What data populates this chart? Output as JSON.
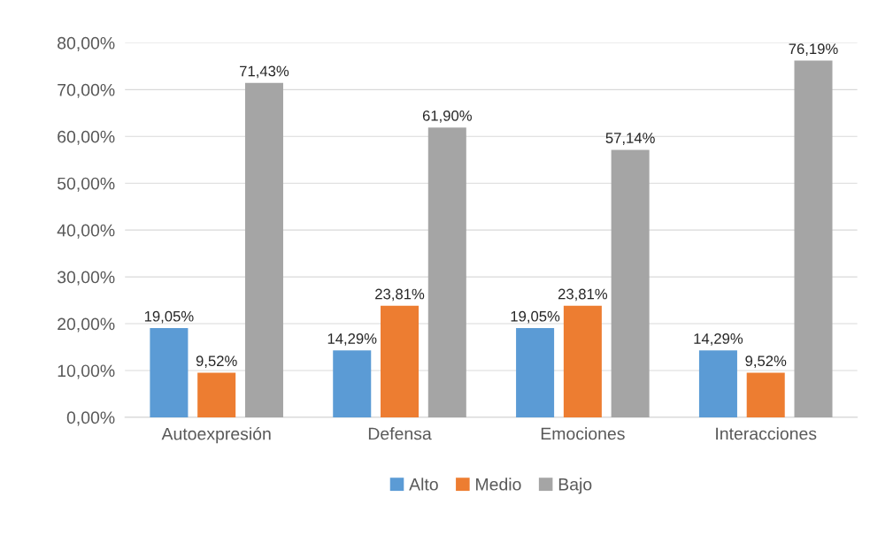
{
  "chart_data": {
    "type": "bar",
    "categories": [
      "Autoexpresión",
      "Defensa",
      "Emociones",
      "Interacciones"
    ],
    "series": [
      {
        "name": "Alto",
        "color": "#5b9bd5",
        "values": [
          19.05,
          14.29,
          19.05,
          14.29
        ],
        "value_labels": [
          "19,05%",
          "14,29%",
          "19,05%",
          "14,29%"
        ]
      },
      {
        "name": "Medio",
        "color": "#ed7d31",
        "values": [
          9.52,
          23.81,
          23.81,
          9.52
        ],
        "value_labels": [
          "9,52%",
          "23,81%",
          "23,81%",
          "9,52%"
        ]
      },
      {
        "name": "Bajo",
        "color": "#a5a5a5",
        "values": [
          71.43,
          61.9,
          57.14,
          76.19
        ],
        "value_labels": [
          "71,43%",
          "61,90%",
          "57,14%",
          "76,19%"
        ]
      }
    ],
    "ylim": [
      0,
      80
    ],
    "yticks": [
      {
        "value": 0,
        "label": "0,00%"
      },
      {
        "value": 10,
        "label": "10,00%"
      },
      {
        "value": 20,
        "label": "20,00%"
      },
      {
        "value": 30,
        "label": "30,00%"
      },
      {
        "value": 40,
        "label": "40,00%"
      },
      {
        "value": 50,
        "label": "50,00%"
      },
      {
        "value": 60,
        "label": "60,00%"
      },
      {
        "value": 70,
        "label": "70,00%"
      },
      {
        "value": 80,
        "label": "80,00%"
      }
    ],
    "grid": "y",
    "legend": "bottom"
  }
}
